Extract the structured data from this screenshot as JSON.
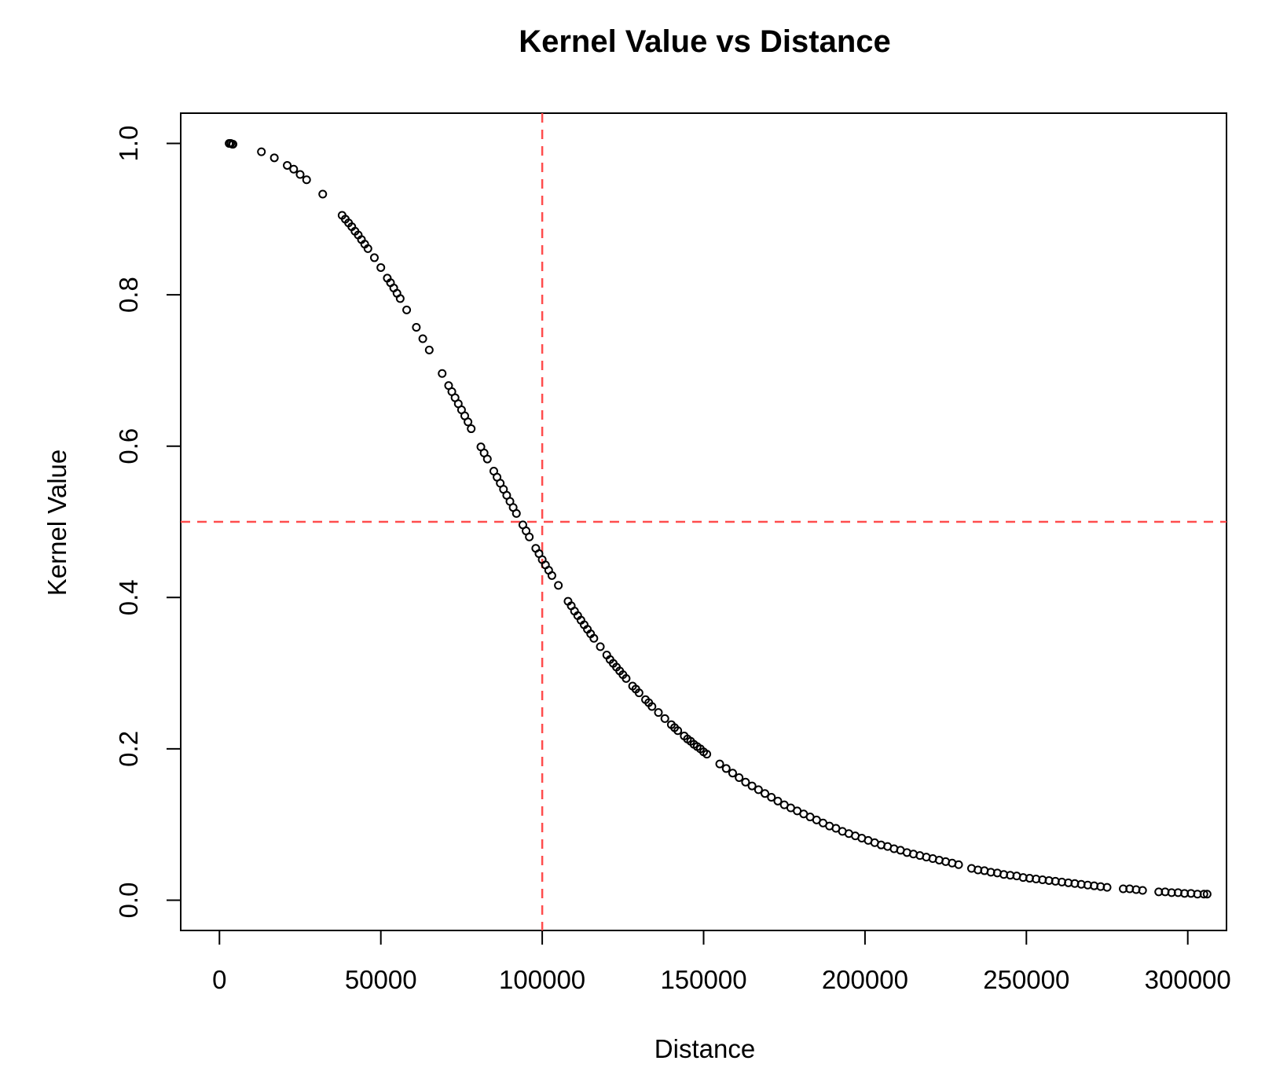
{
  "chart_data": {
    "type": "scatter",
    "title": "Kernel Value vs Distance",
    "xlabel": "Distance",
    "ylabel": "Kernel Value",
    "xlim": [
      -12000,
      312000
    ],
    "ylim": [
      -0.04,
      1.04
    ],
    "x_ticks": [
      0,
      50000,
      100000,
      150000,
      200000,
      250000,
      300000
    ],
    "x_tick_labels": [
      "0",
      "50000",
      "100000",
      "150000",
      "200000",
      "250000",
      "300000"
    ],
    "y_ticks": [
      0.0,
      0.2,
      0.4,
      0.6,
      0.8,
      1.0
    ],
    "y_tick_labels": [
      "0.0",
      "0.2",
      "0.4",
      "0.6",
      "0.8",
      "1.0"
    ],
    "grid": false,
    "legend": "none",
    "marker": "open-circle",
    "marker_color": "#000000",
    "reference_lines": [
      {
        "orientation": "vertical",
        "x": 100000,
        "style": "dashed",
        "color": "#ff4d4d"
      },
      {
        "orientation": "horizontal",
        "y": 0.5,
        "style": "dashed",
        "color": "#ff4d4d"
      }
    ],
    "points": {
      "x": [
        3000,
        3500,
        4000,
        4200,
        13000,
        17000,
        21000,
        23000,
        25000,
        27000,
        32000,
        38000,
        39000,
        40000,
        41000,
        42000,
        43000,
        44000,
        45000,
        46000,
        48000,
        50000,
        52000,
        53000,
        54000,
        55000,
        56000,
        58000,
        61000,
        63000,
        65000,
        69000,
        71000,
        72000,
        73000,
        74000,
        75000,
        76000,
        77000,
        78000,
        81000,
        82000,
        83000,
        85000,
        86000,
        87000,
        88000,
        89000,
        90000,
        91000,
        92000,
        94000,
        95000,
        96000,
        98000,
        99000,
        100000,
        101000,
        102000,
        103000,
        105000,
        108000,
        109000,
        110000,
        111000,
        112000,
        113000,
        114000,
        115000,
        116000,
        118000,
        120000,
        121000,
        122000,
        123000,
        124000,
        125000,
        126000,
        128000,
        129000,
        130000,
        132000,
        133000,
        134000,
        136000,
        138000,
        140000,
        141000,
        142000,
        144000,
        145000,
        146000,
        147000,
        148000,
        149000,
        150000,
        151000,
        155000,
        157000,
        159000,
        161000,
        163000,
        165000,
        167000,
        169000,
        171000,
        173000,
        175000,
        177000,
        179000,
        181000,
        183000,
        185000,
        187000,
        189000,
        191000,
        193000,
        195000,
        197000,
        199000,
        201000,
        203000,
        205000,
        207000,
        209000,
        211000,
        213000,
        215000,
        217000,
        219000,
        221000,
        223000,
        225000,
        227000,
        229000,
        233000,
        235000,
        237000,
        239000,
        241000,
        243000,
        245000,
        247000,
        249000,
        251000,
        253000,
        255000,
        257000,
        259000,
        261000,
        263000,
        265000,
        267000,
        269000,
        271000,
        273000,
        275000,
        280000,
        282000,
        284000,
        286000,
        291000,
        293000,
        295000,
        297000,
        299000,
        301000,
        303000,
        305000,
        306000
      ],
      "y": [
        1.0,
        1.0,
        0.999,
        0.999,
        0.989,
        0.981,
        0.971,
        0.966,
        0.959,
        0.952,
        0.933,
        0.905,
        0.9,
        0.895,
        0.89,
        0.884,
        0.879,
        0.873,
        0.867,
        0.861,
        0.849,
        0.836,
        0.822,
        0.816,
        0.809,
        0.802,
        0.795,
        0.78,
        0.757,
        0.742,
        0.727,
        0.696,
        0.68,
        0.672,
        0.664,
        0.656,
        0.648,
        0.64,
        0.632,
        0.623,
        0.599,
        0.591,
        0.583,
        0.567,
        0.559,
        0.551,
        0.543,
        0.535,
        0.527,
        0.519,
        0.511,
        0.496,
        0.488,
        0.48,
        0.465,
        0.458,
        0.45,
        0.443,
        0.436,
        0.429,
        0.416,
        0.395,
        0.389,
        0.382,
        0.376,
        0.37,
        0.364,
        0.358,
        0.352,
        0.346,
        0.335,
        0.324,
        0.318,
        0.313,
        0.308,
        0.303,
        0.298,
        0.293,
        0.283,
        0.279,
        0.274,
        0.265,
        0.261,
        0.256,
        0.248,
        0.24,
        0.232,
        0.228,
        0.224,
        0.217,
        0.213,
        0.21,
        0.206,
        0.203,
        0.2,
        0.196,
        0.193,
        0.18,
        0.174,
        0.168,
        0.162,
        0.156,
        0.151,
        0.146,
        0.141,
        0.136,
        0.131,
        0.126,
        0.122,
        0.118,
        0.114,
        0.11,
        0.106,
        0.102,
        0.098,
        0.095,
        0.091,
        0.088,
        0.085,
        0.082,
        0.079,
        0.076,
        0.073,
        0.071,
        0.068,
        0.066,
        0.063,
        0.061,
        0.059,
        0.057,
        0.055,
        0.053,
        0.051,
        0.049,
        0.047,
        0.042,
        0.04,
        0.039,
        0.037,
        0.036,
        0.034,
        0.033,
        0.032,
        0.03,
        0.029,
        0.028,
        0.027,
        0.026,
        0.025,
        0.024,
        0.023,
        0.022,
        0.021,
        0.02,
        0.019,
        0.018,
        0.017,
        0.015,
        0.015,
        0.014,
        0.013,
        0.011,
        0.011,
        0.01,
        0.01,
        0.009,
        0.009,
        0.008,
        0.008,
        0.008
      ]
    }
  }
}
